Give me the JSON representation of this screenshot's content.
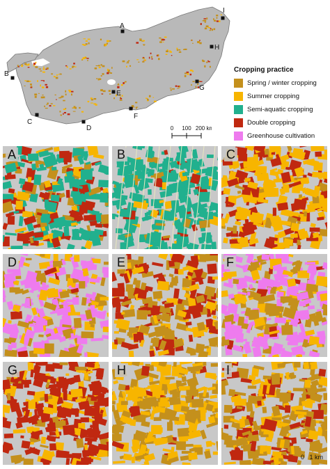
{
  "legend": {
    "title": "Cropping practice",
    "items": [
      {
        "label": "Spring / winter cropping",
        "color": "#c4901c"
      },
      {
        "label": "Summer cropping",
        "color": "#f7b500"
      },
      {
        "label": "Semi-aquatic cropping",
        "color": "#21b08e"
      },
      {
        "label": "Double cropping",
        "color": "#c02810"
      },
      {
        "label": "Greenhouse cultivation",
        "color": "#ee7bee"
      }
    ]
  },
  "overview_scale": {
    "ticks": [
      "0",
      "100",
      "200 km"
    ]
  },
  "site_markers": [
    "A",
    "B",
    "C",
    "D",
    "E",
    "F",
    "G",
    "H",
    "I"
  ],
  "panels": [
    {
      "label": "A",
      "mix": [
        0.15,
        0.12,
        0.4,
        0.3,
        0.0
      ]
    },
    {
      "label": "B",
      "mix": [
        0.05,
        0.08,
        0.82,
        0.05,
        0.0
      ]
    },
    {
      "label": "C",
      "mix": [
        0.1,
        0.6,
        0.0,
        0.3,
        0.0
      ]
    },
    {
      "label": "D",
      "mix": [
        0.25,
        0.15,
        0.0,
        0.05,
        0.55
      ]
    },
    {
      "label": "E",
      "mix": [
        0.35,
        0.25,
        0.0,
        0.4,
        0.0
      ]
    },
    {
      "label": "F",
      "mix": [
        0.3,
        0.15,
        0.0,
        0.05,
        0.5
      ]
    },
    {
      "label": "G",
      "mix": [
        0.05,
        0.3,
        0.0,
        0.65,
        0.0
      ]
    },
    {
      "label": "H",
      "mix": [
        0.45,
        0.5,
        0.0,
        0.05,
        0.0
      ]
    },
    {
      "label": "I",
      "mix": [
        0.55,
        0.2,
        0.0,
        0.25,
        0.0
      ]
    }
  ],
  "panel_scale": {
    "text": "0   1 km"
  }
}
